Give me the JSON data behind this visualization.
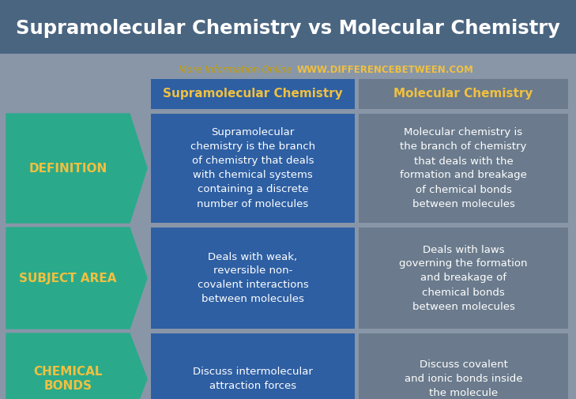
{
  "title": "Supramolecular Chemistry vs Molecular Chemistry",
  "subtitle_plain": "More Information Online",
  "subtitle_url": "WWW.DIFFERENCEBETWEEN.COM",
  "col1_header": "Supramolecular Chemistry",
  "col2_header": "Molecular Chemistry",
  "rows": [
    {
      "label": "DEFINITION",
      "col1": "Supramolecular\nchemistry is the branch\nof chemistry that deals\nwith chemical systems\ncontaining a discrete\nnumber of molecules",
      "col2": "Molecular chemistry is\nthe branch of chemistry\nthat deals with the\nformation and breakage\nof chemical bonds\nbetween molecules"
    },
    {
      "label": "SUBJECT AREA",
      "col1": "Deals with weak,\nreversible non-\ncovalent interactions\nbetween molecules",
      "col2": "Deals with laws\ngoverning the formation\nand breakage of\nchemical bonds\nbetween molecules"
    },
    {
      "label": "CHEMICAL\nBONDS",
      "col1": "Discuss intermolecular\nattraction forces",
      "col2": "Discuss covalent\nand ionic bonds inside\nthe molecule"
    }
  ],
  "bg_color": "#8896a8",
  "title_bg_color": "#4a6580",
  "title_color": "#ffffff",
  "header_col1_bg": "#2e5fa3",
  "header_col2_bg": "#6b7b8d",
  "cell_col1_bg": "#2e5fa3",
  "cell_col2_bg": "#6b7b8d",
  "arrow_bg": "#2aaa8a",
  "arrow_label_color": "#f0c040",
  "cell_text_color": "#ffffff",
  "header_text_color": "#f0c040",
  "subtitle_plain_color": "#c8a000",
  "subtitle_url_color": "#f0c040",
  "gap_color": "#8896a8"
}
